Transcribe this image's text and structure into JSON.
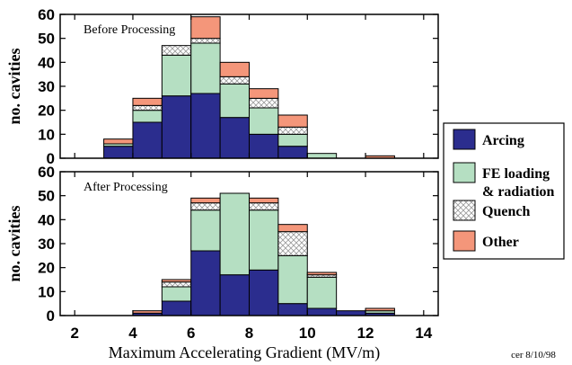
{
  "colors": {
    "arcing": "#2b2d8e",
    "fe": "#b5dfc2",
    "quench": "#ffffff",
    "other": "#f4967a",
    "axis": "#000000"
  },
  "chart_data": {
    "type": "bar",
    "stacked": true,
    "x": [
      3.5,
      4.5,
      5.5,
      6.5,
      7.5,
      8.5,
      9.5,
      10.5,
      11.5,
      12.5,
      13.5
    ],
    "xlim": [
      1.5,
      14.5
    ],
    "xticks": [
      2,
      4,
      6,
      8,
      10,
      12,
      14
    ],
    "ylim": [
      0,
      60
    ],
    "yticks": [
      0,
      10,
      20,
      30,
      40,
      50,
      60
    ],
    "xlabel": "Maximum Accelerating Gradient (MV/m)",
    "ylabel": "no. cavities",
    "legend": {
      "position": "right",
      "entries": [
        {
          "key": "arcing",
          "label": "Arcing",
          "icon": "solid-fill"
        },
        {
          "key": "fe",
          "label_lines": [
            "FE loading",
            "& radiation"
          ],
          "icon": "solid-fill"
        },
        {
          "key": "quench",
          "label": "Quench",
          "icon": "crosshatch"
        },
        {
          "key": "other",
          "label": "Other",
          "icon": "solid-fill"
        }
      ]
    },
    "panels": [
      {
        "title": "Before Processing",
        "series": [
          {
            "name": "Arcing",
            "key": "arcing",
            "values": [
              5,
              15,
              26,
              27,
              17,
              10,
              5,
              0,
              0,
              0,
              0
            ]
          },
          {
            "name": "FE loading & radiation",
            "key": "fe",
            "values": [
              1,
              5,
              17,
              21,
              14,
              11,
              5,
              2,
              0,
              0,
              0
            ]
          },
          {
            "name": "Quench",
            "key": "quench",
            "values": [
              0,
              2,
              4,
              2,
              3,
              4,
              3,
              0,
              0,
              0,
              0
            ]
          },
          {
            "name": "Other",
            "key": "other",
            "values": [
              2,
              3,
              0,
              9,
              6,
              4,
              5,
              0,
              0,
              1,
              0
            ]
          }
        ]
      },
      {
        "title": "After Processing",
        "series": [
          {
            "name": "Arcing",
            "key": "arcing",
            "values": [
              0,
              1,
              6,
              27,
              17,
              19,
              5,
              3,
              2,
              1,
              0
            ]
          },
          {
            "name": "FE loading & radiation",
            "key": "fe",
            "values": [
              0,
              0,
              6,
              17,
              34,
              25,
              20,
              13,
              0,
              1,
              0
            ]
          },
          {
            "name": "Quench",
            "key": "quench",
            "values": [
              0,
              0,
              2,
              3,
              0,
              3,
              10,
              1,
              0,
              0,
              0
            ]
          },
          {
            "name": "Other",
            "key": "other",
            "values": [
              0,
              1,
              1,
              2,
              0,
              2,
              3,
              1,
              0,
              1,
              0
            ]
          }
        ]
      }
    ]
  },
  "footer": {
    "credit": "cer 8/10/98"
  }
}
